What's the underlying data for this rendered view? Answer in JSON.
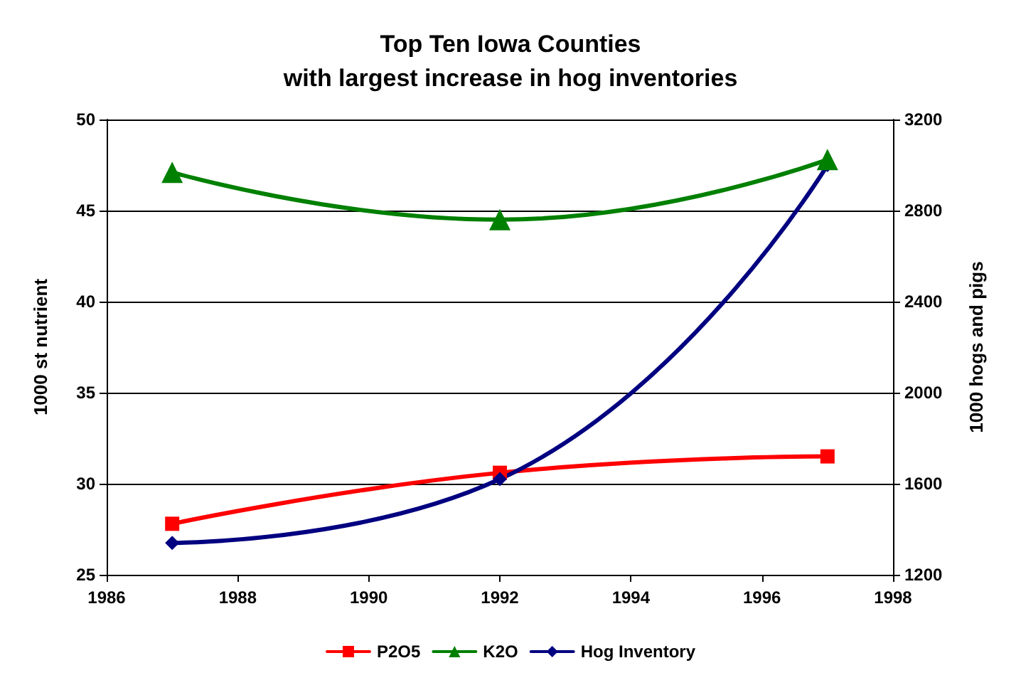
{
  "chart_data": {
    "type": "line",
    "title": "Top Ten Iowa Counties\nwith largest increase in hog inventories",
    "ylabel": "1000 st nutrient",
    "y2label": "1000 hogs and pigs",
    "x": [
      1987,
      1992,
      1997
    ],
    "series": [
      {
        "name": "P2O5",
        "color": "#ff0000",
        "marker": "square",
        "values": [
          27.8,
          30.6,
          31.5
        ]
      },
      {
        "name": "K2O",
        "color": "#008000",
        "marker": "triangle",
        "values": [
          47.1,
          44.5,
          47.8
        ]
      },
      {
        "name": "Hog Inventory",
        "color": "#000080",
        "marker": "diamond",
        "axis": "y2",
        "values": [
          1340,
          1620,
          3000
        ]
      }
    ],
    "xlim": [
      1986,
      1998
    ],
    "xticks": [
      1986,
      1988,
      1990,
      1992,
      1994,
      1996,
      1998
    ],
    "ylim": [
      25,
      50
    ],
    "yticks": [
      25,
      30,
      35,
      40,
      45,
      50
    ],
    "y2lim": [
      1200,
      3200
    ],
    "y2ticks": [
      1200,
      1600,
      2000,
      2400,
      2800,
      3200
    ],
    "grid": "y",
    "legend": "bottom"
  }
}
